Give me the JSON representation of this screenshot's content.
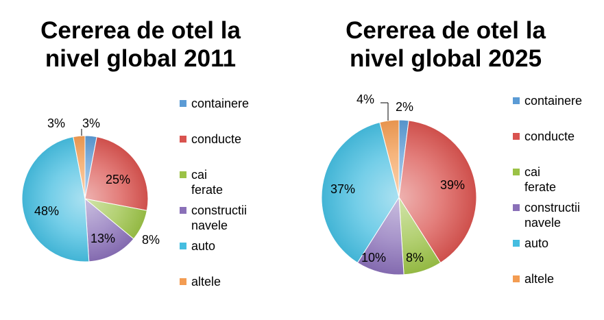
{
  "chart_data": [
    {
      "type": "pie",
      "title": "Cererea de otel la\nnivel global 2011",
      "categories": [
        "containere",
        "conducte",
        "cai ferate",
        "constructii\nnavele",
        "auto",
        "altele"
      ],
      "values": [
        3,
        25,
        8,
        13,
        48,
        3
      ],
      "labels": [
        "3%",
        "25%",
        "8%",
        "13%",
        "48%",
        "3%"
      ],
      "colors": [
        "#5b9bd5",
        "#d9534f",
        "#9bc246",
        "#8a70b8",
        "#45bde0",
        "#f39c52"
      ],
      "legend": "right"
    },
    {
      "type": "pie",
      "title": "Cererea de otel la\nnivel global 2025",
      "categories": [
        "containere",
        "conducte",
        "cai ferate",
        "constructii\nnavele",
        "auto",
        "altele"
      ],
      "values": [
        2,
        39,
        8,
        10,
        37,
        4
      ],
      "labels": [
        "2%",
        "39%",
        "8%",
        "10%",
        "37%",
        "4%"
      ],
      "colors": [
        "#5b9bd5",
        "#d9534f",
        "#9bc246",
        "#8a70b8",
        "#45bde0",
        "#f39c52"
      ],
      "legend": "right"
    }
  ]
}
